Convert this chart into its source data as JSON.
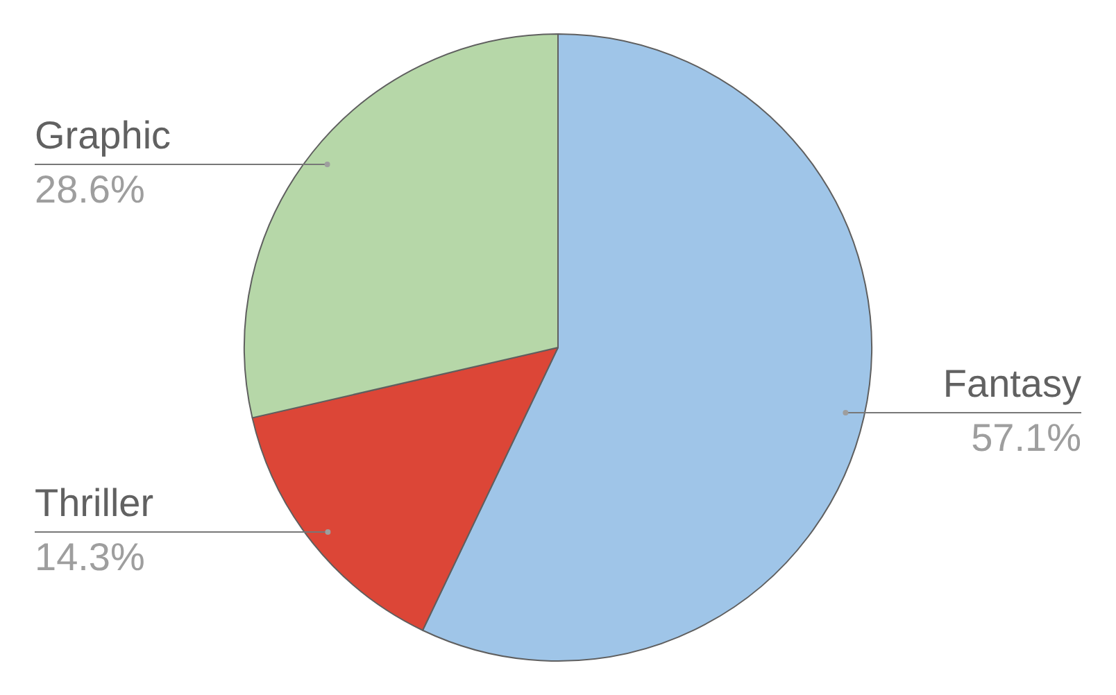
{
  "chart_data": {
    "type": "pie",
    "categories": [
      "Fantasy",
      "Thriller",
      "Graphic"
    ],
    "values": [
      57.1,
      14.3,
      28.6
    ],
    "colors": [
      "#9fc5e8",
      "#dc4637",
      "#b6d7a8"
    ],
    "value_labels": [
      "57.1%",
      "14.3%",
      "28.6%"
    ]
  }
}
